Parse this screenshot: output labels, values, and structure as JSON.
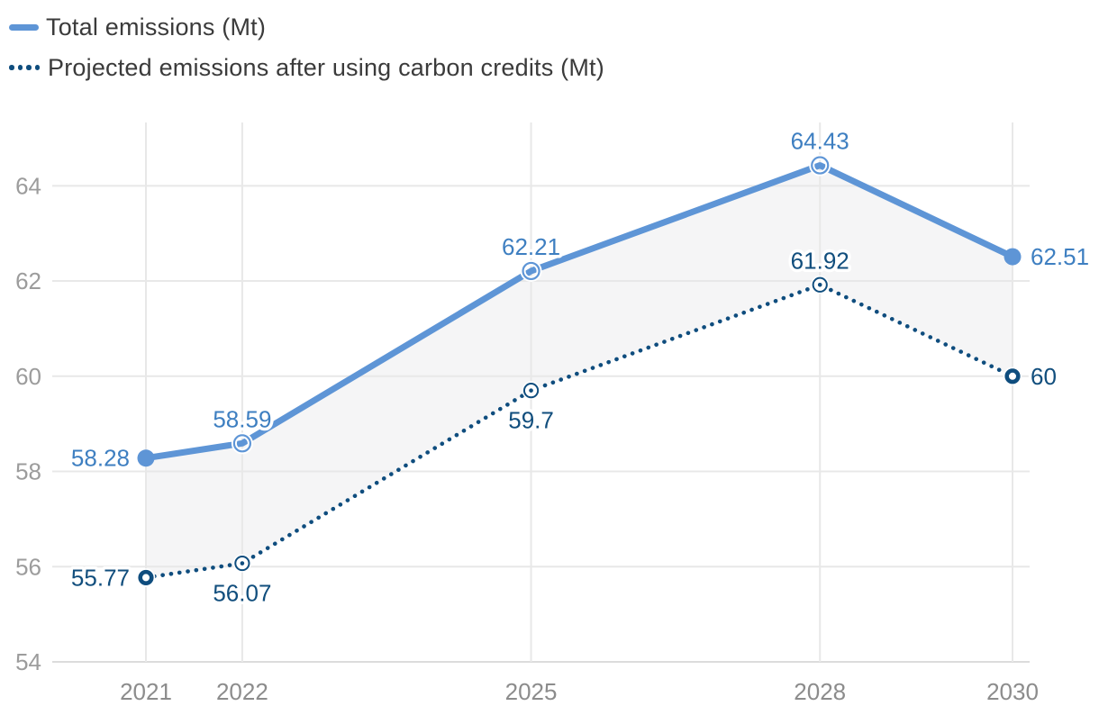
{
  "legend": {
    "items": [
      {
        "label": "Total emissions (Mt)",
        "swatch": "solid-line"
      },
      {
        "label": "Projected emissions after using carbon credits (Mt)",
        "swatch": "dotted-line"
      }
    ]
  },
  "chart_data": {
    "type": "line",
    "x": [
      2021,
      2022,
      2025,
      2028,
      2030
    ],
    "x_tick_labels": [
      "2021",
      "2022",
      "2025",
      "2028",
      "2030"
    ],
    "y_ticks": [
      54,
      56,
      58,
      60,
      62,
      64
    ],
    "ylim": [
      54,
      65.33
    ],
    "xlim": [
      2021,
      2030
    ],
    "grid": true,
    "legend_position": "top-left",
    "series": [
      {
        "name": "Total emissions (Mt)",
        "values": [
          58.28,
          58.59,
          62.21,
          64.43,
          62.51
        ],
        "labels": [
          "58.28",
          "58.59",
          "62.21",
          "64.43",
          "62.51"
        ],
        "label_positions": [
          "left",
          "top",
          "top",
          "top",
          "right"
        ],
        "style": "solid",
        "color": "#5e95d6",
        "label_color": "#3e7fc1"
      },
      {
        "name": "Projected emissions after using carbon credits (Mt)",
        "values": [
          55.77,
          56.07,
          59.7,
          61.92,
          60
        ],
        "labels": [
          "55.77",
          "56.07",
          "59.7",
          "61.92",
          "60"
        ],
        "label_positions": [
          "left",
          "bottom",
          "bottom",
          "top",
          "right"
        ],
        "style": "dotted",
        "color": "#0f4d7e",
        "label_color": "#114e7d"
      }
    ],
    "band_fill_between_series": "#f5f5f6",
    "colors": {
      "gridline": "#e8e8e8",
      "axis_line": "#dcdcdc",
      "x_tick_text": "#8c8c8c",
      "y_tick_text": "#9c9c9c",
      "legend_text": "#3b3b3b"
    }
  }
}
